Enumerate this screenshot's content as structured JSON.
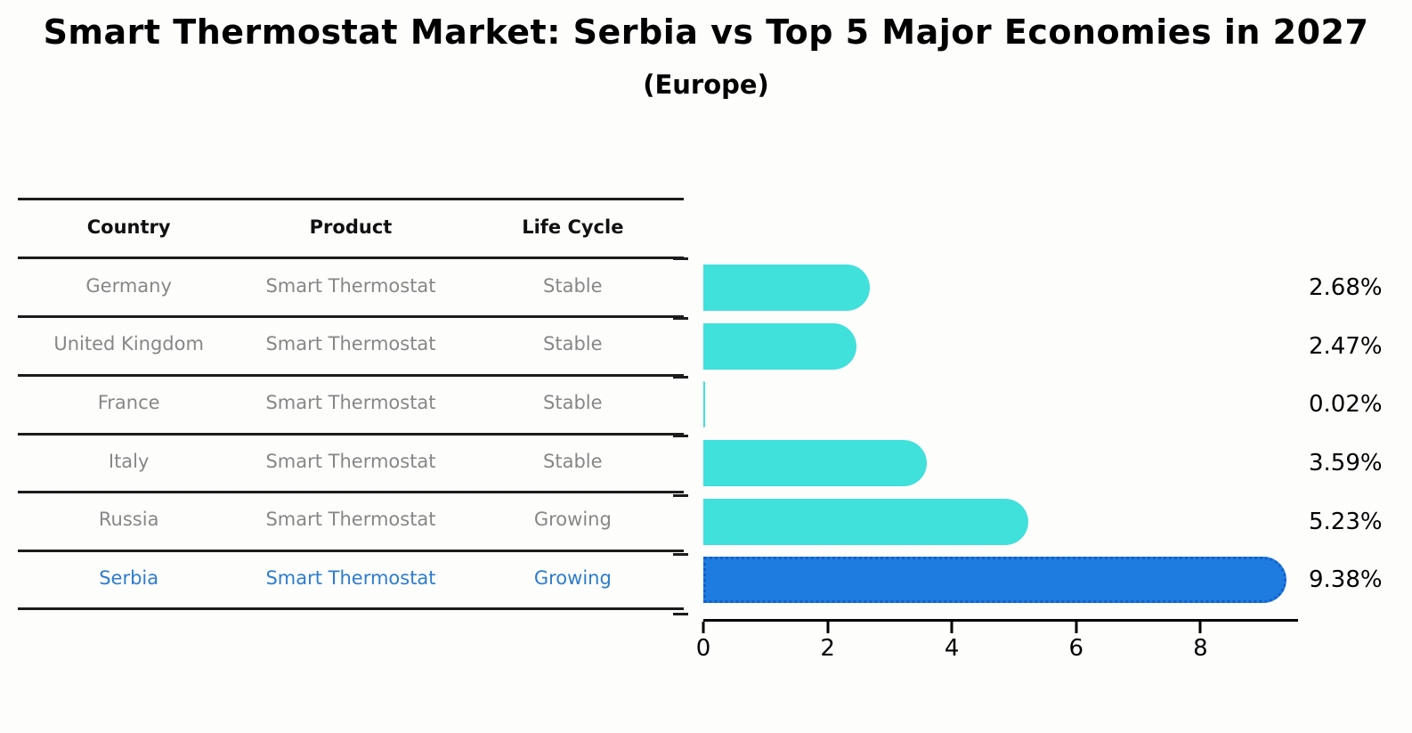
{
  "chart_data": {
    "type": "bar",
    "orientation": "horizontal",
    "title": "Smart Thermostat Market: Serbia vs Top 5 Major Economies in 2027",
    "subtitle": "(Europe)",
    "categories": [
      "Germany",
      "United Kingdom",
      "France",
      "Italy",
      "Russia",
      "Serbia"
    ],
    "values": [
      2.68,
      2.47,
      0.02,
      3.59,
      5.23,
      9.38
    ],
    "value_labels": [
      "2.68%",
      "2.47%",
      "0.02%",
      "3.59%",
      "5.23%",
      "9.38%"
    ],
    "x_ticks": [
      0,
      2,
      4,
      6,
      8
    ],
    "xlim": [
      0,
      9.57
    ],
    "xlabel": "",
    "ylabel": "",
    "grid": false,
    "legend": "none",
    "bar_color": "#40e0db",
    "highlight_index": 5,
    "highlight_color": "#1e7ce0",
    "highlight_border_color": "#115fce"
  },
  "table": {
    "headers": [
      "Country",
      "Product",
      "Life Cycle"
    ],
    "rows": [
      {
        "country": "Germany",
        "product": "Smart Thermostat",
        "life_cycle": "Stable",
        "highlighted": false
      },
      {
        "country": "United Kingdom",
        "product": "Smart Thermostat",
        "life_cycle": "Stable",
        "highlighted": false
      },
      {
        "country": "France",
        "product": "Smart Thermostat",
        "life_cycle": "Stable",
        "highlighted": false
      },
      {
        "country": "Italy",
        "product": "Smart Thermostat",
        "life_cycle": "Stable",
        "highlighted": false
      },
      {
        "country": "Russia",
        "product": "Smart Thermostat",
        "life_cycle": "Growing",
        "highlighted": false
      },
      {
        "country": "Serbia",
        "product": "Smart Thermostat",
        "life_cycle": "Growing",
        "highlighted": true
      }
    ],
    "highlight_text_color": "#2d7ccf",
    "body_text_color": "#878787"
  }
}
